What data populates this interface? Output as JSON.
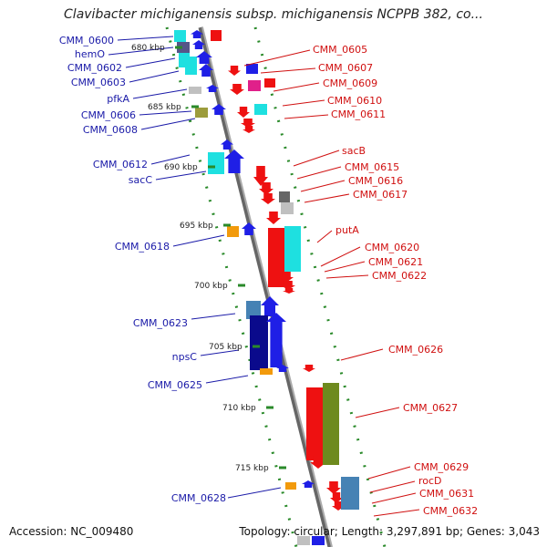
{
  "title": "Clavibacter michiganensis subsp. michiganensis NCPPB 382, co...",
  "footer": {
    "accession": "Accession: NC_009480",
    "topology": "Topology: circular; Length: 3,297,891 bp; Genes: 3,043"
  },
  "colors": {
    "forward_label": "#1a1aa8",
    "reverse_label": "#d01010",
    "backbone": "#888888",
    "tick": "#2a8a2a"
  },
  "scale_labels": [
    "680 kbp",
    "685 kbp",
    "690 kbp",
    "695 kbp",
    "700 kbp",
    "705 kbp",
    "710 kbp",
    "715 kbp"
  ],
  "forward_labels": [
    "CMM_0600",
    "hemO",
    "CMM_0602",
    "CMM_0603",
    "pfkA",
    "CMM_0606",
    "CMM_0608",
    "CMM_0612",
    "sacC",
    "CMM_0618",
    "CMM_0623",
    "npsC",
    "CMM_0625",
    "CMM_0628"
  ],
  "reverse_labels": [
    "CMM_0605",
    "CMM_0607",
    "CMM_0609",
    "CMM_0610",
    "CMM_0611",
    "sacB",
    "CMM_0615",
    "CMM_0616",
    "CMM_0617",
    "putA",
    "CMM_0620",
    "CMM_0621",
    "CMM_0622",
    "CMM_0626",
    "CMM_0627",
    "CMM_0629",
    "rocD",
    "CMM_0631",
    "CMM_0632"
  ]
}
